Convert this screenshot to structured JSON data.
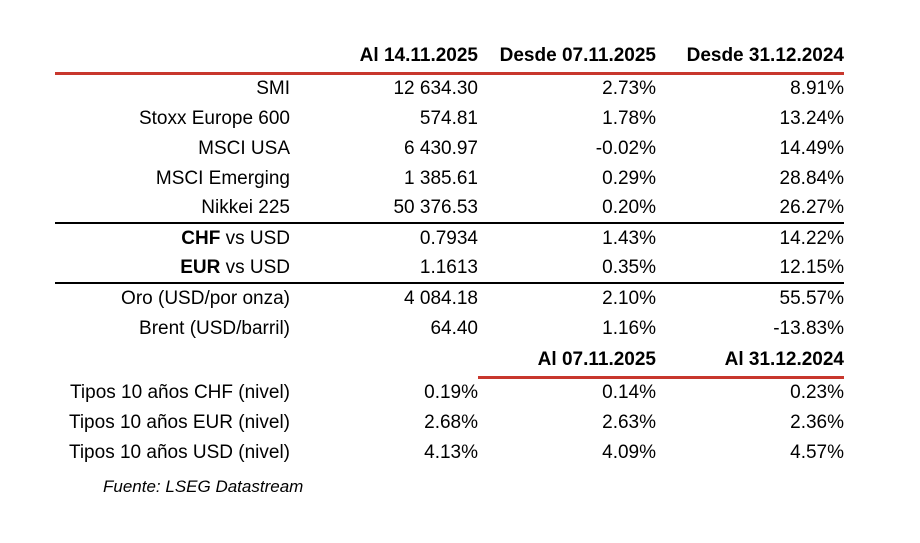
{
  "colors": {
    "accent_red": "#C8372D",
    "text": "#000000"
  },
  "markets": {
    "col_headers": [
      "Al 14.11.2025",
      "Desde 07.11.2025",
      "Desde 31.12.2024"
    ],
    "groups": [
      {
        "rows": [
          {
            "label": "SMI",
            "level": "12 634.30",
            "change_week": "2.73%",
            "change_ytd": "8.91%"
          },
          {
            "label": "Stoxx Europe 600",
            "level": "574.81",
            "change_week": "1.78%",
            "change_ytd": "13.24%"
          },
          {
            "label": "MSCI USA",
            "level": "6 430.97",
            "change_week": "-0.02%",
            "change_ytd": "14.49%"
          },
          {
            "label": "MSCI Emerging",
            "level": "1 385.61",
            "change_week": "0.29%",
            "change_ytd": "28.84%"
          },
          {
            "label": "Nikkei 225",
            "level": "50 376.53",
            "change_week": "0.20%",
            "change_ytd": "26.27%"
          }
        ]
      },
      {
        "rows": [
          {
            "label_bold": "CHF",
            "label_rest": " vs USD",
            "level": "0.7934",
            "change_week": "1.43%",
            "change_ytd": "14.22%"
          },
          {
            "label_bold": "EUR",
            "label_rest": " vs USD",
            "level": "1.1613",
            "change_week": "0.35%",
            "change_ytd": "12.15%"
          }
        ]
      },
      {
        "rows": [
          {
            "label": "Oro (USD/por onza)",
            "level": "4 084.18",
            "change_week": "2.10%",
            "change_ytd": "55.57%"
          },
          {
            "label": "Brent (USD/barril)",
            "level": "64.40",
            "change_week": "1.16%",
            "change_ytd": "-13.83%"
          }
        ]
      }
    ]
  },
  "rates": {
    "col_headers": [
      "Al 07.11.2025",
      "Al 31.12.2024"
    ],
    "rows": [
      {
        "label": "Tipos 10 años CHF (nivel)",
        "current": "0.19%",
        "prev_week": "0.14%",
        "prev_year_end": "0.23%"
      },
      {
        "label": "Tipos 10 años EUR (nivel)",
        "current": "2.68%",
        "prev_week": "2.63%",
        "prev_year_end": "2.36%"
      },
      {
        "label": "Tipos 10 años USD (nivel)",
        "current": "4.13%",
        "prev_week": "4.09%",
        "prev_year_end": "4.57%"
      }
    ]
  },
  "footer": {
    "source": "Fuente: LSEG Datastream"
  }
}
